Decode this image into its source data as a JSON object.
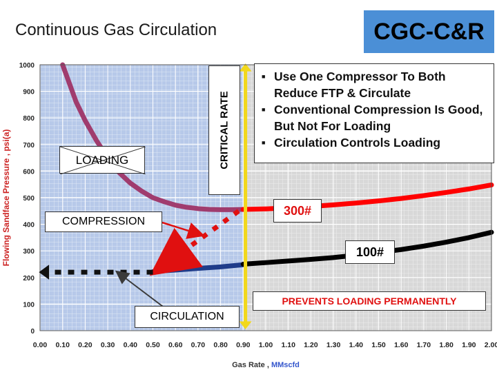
{
  "slide": {
    "title": "Continuous Gas Circulation",
    "brand": "CGC-C&R",
    "bullets": [
      "Use One Compressor To Both Reduce FTP & Circulate",
      "Conventional Compression Is Good, But Not For Loading",
      "Circulation Controls Loading"
    ],
    "annotations": {
      "critical_rate": "CRITICAL RATE",
      "loading": "LOADING",
      "compression": "COMPRESSION",
      "circulation": "CIRCULATION",
      "p300": "300#",
      "p100": "100#",
      "prevents": "PREVENTS LOADING PERMANENTLY"
    }
  },
  "chart_data": {
    "type": "line",
    "xlabel": "Gas Rate",
    "xunit": "MMscfd",
    "ylabel": "Flowing Sandface Pressure , psi(a)",
    "xlim": [
      0,
      2.0
    ],
    "ylim": [
      0,
      1000
    ],
    "xticks": [
      "0.00",
      "0.10",
      "0.20",
      "0.30",
      "0.40",
      "0.50",
      "0.60",
      "0.70",
      "0.80",
      "0.90",
      "1.00",
      "1.10",
      "1.20",
      "1.30",
      "1.40",
      "1.50",
      "1.60",
      "1.70",
      "1.80",
      "1.90",
      "2.00"
    ],
    "yticks": [
      "0",
      "100",
      "200",
      "300",
      "400",
      "500",
      "600",
      "700",
      "800",
      "900",
      "1000"
    ],
    "critical_rate_x": 0.91,
    "colors": {
      "loading_region": "#b7c9e9",
      "open_region": "#d8d8d8",
      "critical": "#f2d81c",
      "brand": "#4b8fd6"
    },
    "series": [
      {
        "name": "",
        "color": "#a03c6e",
        "x": [
          0.1,
          0.13,
          0.16,
          0.2,
          0.25,
          0.3,
          0.35,
          0.4,
          0.45,
          0.5,
          0.55,
          0.6,
          0.65,
          0.7,
          0.75,
          0.8,
          0.85,
          0.9
        ],
        "y": [
          1000,
          930,
          860,
          790,
          715,
          650,
          595,
          555,
          525,
          500,
          485,
          472,
          464,
          459,
          456,
          455,
          455,
          456
        ]
      },
      {
        "name": "",
        "color": "#ff0000",
        "x": [
          0.9,
          1.0,
          1.1,
          1.2,
          1.3,
          1.4,
          1.5,
          1.6,
          1.7,
          1.8,
          1.9,
          2.0
        ],
        "y": [
          456,
          458,
          462,
          467,
          473,
          480,
          488,
          497,
          508,
          520,
          533,
          548
        ]
      },
      {
        "name": "",
        "color": "#1f3c8a",
        "x": [
          0.5,
          0.6,
          0.7,
          0.8,
          0.9
        ],
        "y": [
          222,
          228,
          234,
          240,
          248
        ]
      },
      {
        "name": "",
        "color": "#000000",
        "x": [
          0.9,
          1.0,
          1.1,
          1.2,
          1.3,
          1.4,
          1.5,
          1.6,
          1.7,
          1.8,
          1.9,
          2.0
        ],
        "y": [
          250,
          256,
          262,
          268,
          275,
          284,
          294,
          305,
          318,
          333,
          350,
          370
        ]
      }
    ]
  }
}
